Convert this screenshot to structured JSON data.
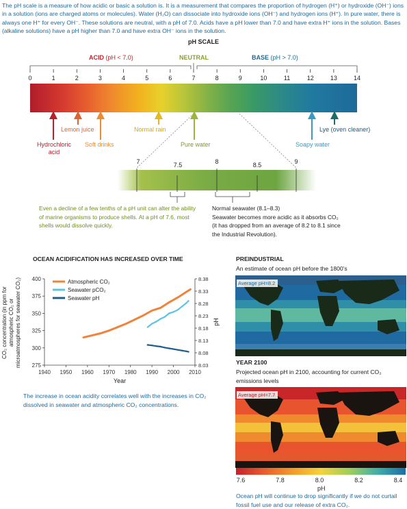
{
  "intro": "The pH scale is a measure of how acidic or basic a solution is. It is a measurement that compares the proportion of hydrogen (H⁺) or hydroxide (OH⁻) ions in a solution (ions are charged atoms or molecules). Water (H₂O) can dissociate into hydroxide ions (OH⁻) and hydrogen ions (H⁺). In pure water, there is always one H⁺ for every OH⁻. These solutions are neutral, with a pH of 7.0. Acids have a pH lower than 7.0 and have extra H⁺ ions in the solution. Bases (alkaline solutions) have a pH higher than 7.0 and have extra OH⁻ ions in the solution.",
  "scale": {
    "title": "pH SCALE",
    "acid": "ACID",
    "acid_range": "(pH < 7.0)",
    "neutral": "NEUTRAL",
    "base": "BASE",
    "base_range": "(pH > 7.0)",
    "ticks": [
      "0",
      "1",
      "2",
      "3",
      "4",
      "5",
      "6",
      "7",
      "8",
      "9",
      "10",
      "11",
      "12",
      "13",
      "14"
    ],
    "substances": {
      "hydrochloric": "Hydrochloric",
      "acid": "acid",
      "lemon": "Lemon juice",
      "soft": "Soft drinks",
      "rain": "Normal rain",
      "pure": "Pure water",
      "soapy": "Soapy water",
      "lye": "Lye (oven cleaner)"
    },
    "zoom_ticks": [
      "7",
      "7.5",
      "8",
      "8.5",
      "9"
    ],
    "note_left": "Even a decline of a few tenths of a pH unit can alter the ability of marine organisms to produce shells. At a pH of 7.6, most shells would dissolve quickly.",
    "note_right_title": "Normal seawater (8.1–8.3)",
    "note_right_body": "Seawater becomes more acidic as it absorbs CO₂ (it has dropped from an average of 8.2 to 8.1 since the Industrial Revolution)."
  },
  "chart_data": {
    "type": "line",
    "title": "OCEAN ACIDIFICATION HAS INCREASED OVER TIME",
    "xlabel": "Year",
    "ylabel": "CO₂ concentration (in ppm for atmospheric CO₂ or microatmospheres for seawater CO₂)",
    "ylabel_right": "pH",
    "xlim": [
      1940,
      2010
    ],
    "ylim": [
      275,
      400
    ],
    "ylim_right": [
      8.03,
      8.38
    ],
    "x_ticks": [
      1940,
      1950,
      1960,
      1970,
      1980,
      1990,
      2000,
      2010
    ],
    "y_ticks": [
      275,
      300,
      325,
      350,
      375,
      400
    ],
    "y_ticks_right": [
      "8.03",
      "8.08",
      "8.13",
      "8.18",
      "8.23",
      "8.28",
      "8.33",
      "8.38"
    ],
    "series": [
      {
        "name": "Atmospheric CO₂",
        "color": "#f0833a",
        "x": [
          1958,
          1962,
          1966,
          1970,
          1974,
          1978,
          1982,
          1986,
          1990,
          1994,
          1998,
          2002,
          2006,
          2008
        ],
        "values": [
          315,
          318,
          321,
          325,
          330,
          335,
          341,
          347,
          354,
          358,
          366,
          373,
          381,
          385
        ]
      },
      {
        "name": "Seawater pCO₂",
        "color": "#5bc3e6",
        "x": [
          1988,
          1990,
          1992,
          1994,
          1996,
          1998,
          2000,
          2002,
          2004,
          2006,
          2007
        ],
        "values": [
          330,
          335,
          338,
          342,
          345,
          350,
          352,
          355,
          360,
          365,
          368
        ]
      },
      {
        "name": "Seawater pH",
        "color": "#1f5f8b",
        "x": [
          1988,
          1990,
          1992,
          1994,
          1996,
          1998,
          2000,
          2002,
          2004,
          2006,
          2007
        ],
        "values": [
          8.112,
          8.11,
          8.107,
          8.105,
          8.101,
          8.098,
          8.095,
          8.092,
          8.089,
          8.086,
          8.084
        ]
      }
    ]
  },
  "chart_caption": "The increase in ocean acidity correlates well with the increases in CO₂ dissolved in seawater and atmospheric CO₂ concentrations.",
  "pre": {
    "title": "PREINDUSTRIAL",
    "subtitle": "An estimate of ocean pH before the 1800's",
    "badge": "Average pH=8.2"
  },
  "y2100": {
    "title": "YEAR 2100",
    "subtitle": "Projected ocean pH in 2100, accounting for current CO₂ emissions levels",
    "badge": "Average pH=7.7"
  },
  "legend": {
    "ticks": [
      "7.6",
      "7.8",
      "8.0",
      "8.2",
      "8.4"
    ],
    "label": "pH",
    "colors": [
      "#c8202a",
      "#e85d2c",
      "#f39a2b",
      "#f6d23a",
      "#9fcf5a",
      "#3fb0a8",
      "#1a6ea8"
    ]
  },
  "bottom_caption": "Ocean pH will continue to drop significantly if we do not curtail fossil fuel use and our release of extra CO₂."
}
